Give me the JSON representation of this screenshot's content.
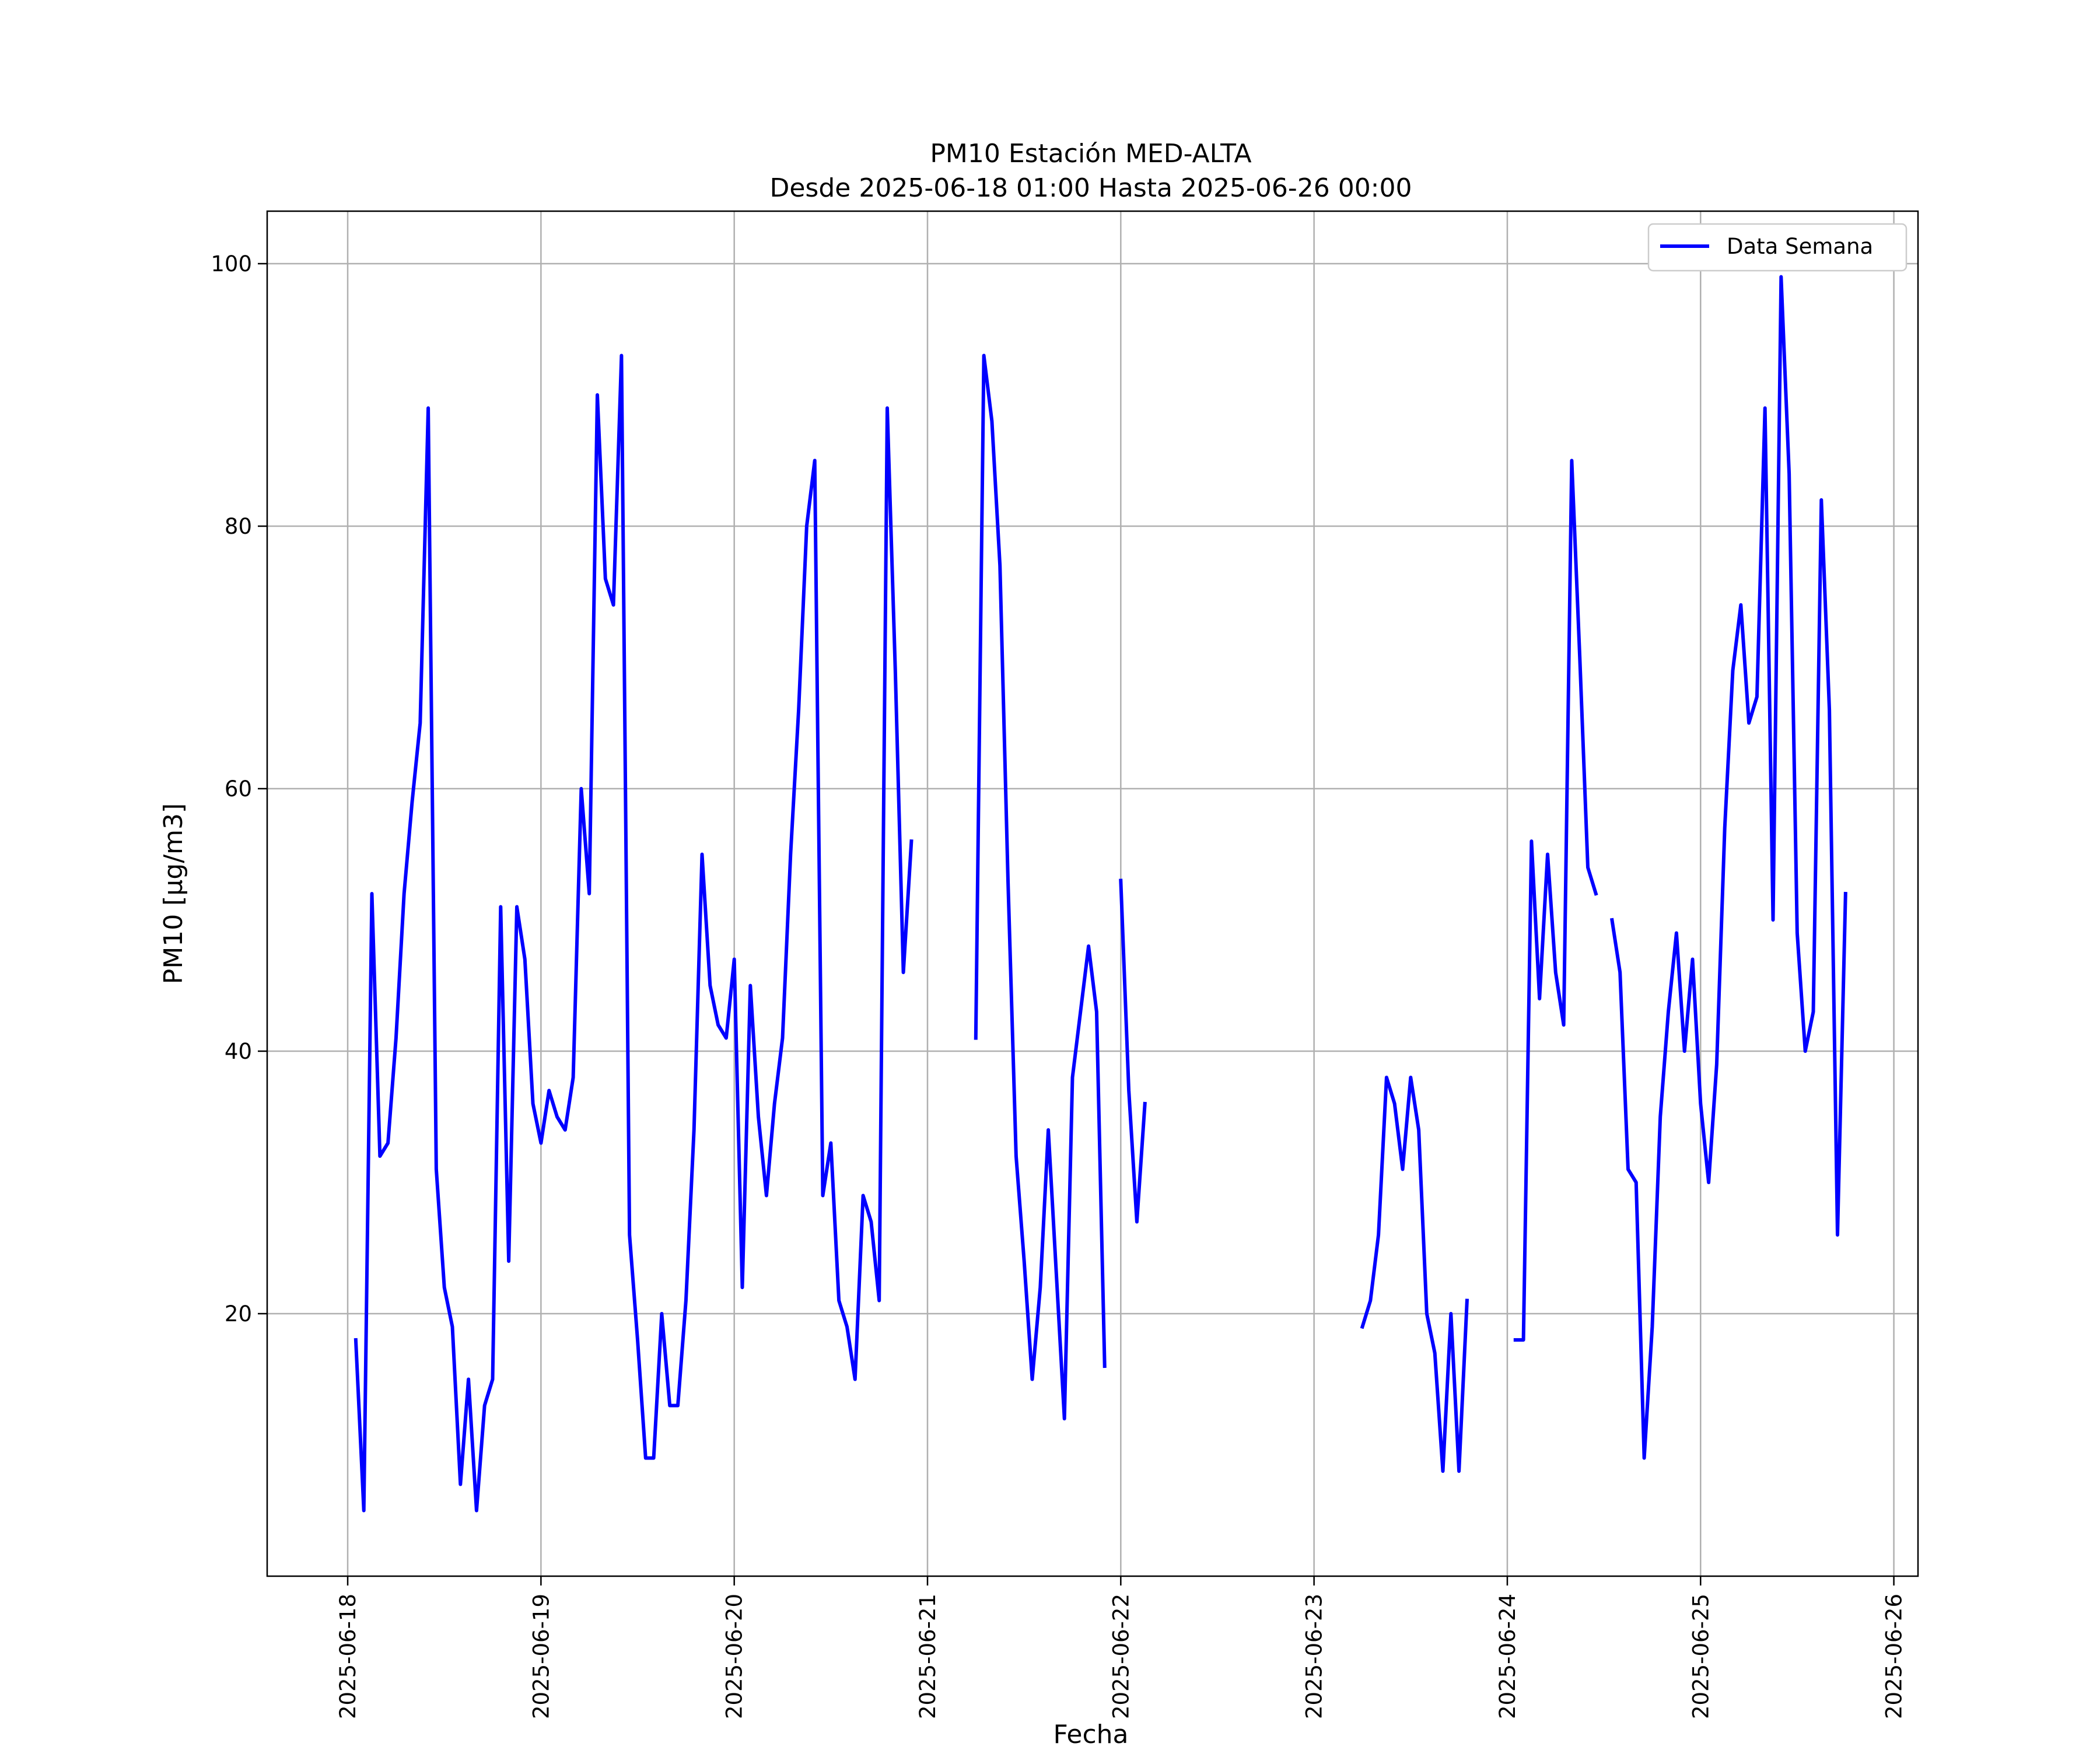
{
  "chart_data": {
    "type": "line",
    "title_line1": "PM10 Estación MED-ALTA",
    "title_line2": "Desde 2025-06-18 01:00 Hasta 2025-06-26 00:00",
    "xlabel": "Fecha",
    "ylabel": "PM10 [μg/m3]",
    "ylim": [
      0,
      104
    ],
    "xlim": [
      "2025-06-17 14:00",
      "2025-06-26 03:00"
    ],
    "x_ticks": [
      "2025-06-18",
      "2025-06-19",
      "2025-06-20",
      "2025-06-21",
      "2025-06-22",
      "2025-06-23",
      "2025-06-24",
      "2025-06-25",
      "2025-06-26"
    ],
    "y_ticks": [
      20,
      40,
      60,
      80,
      100
    ],
    "grid": true,
    "legend": {
      "position": "top-right"
    },
    "colors": {
      "series": "#0000ff",
      "grid": "#b0b0b0"
    },
    "series": [
      {
        "name": "Data Semana",
        "segments": [
          [
            [
              "2025-06-18 01:00",
              18
            ],
            [
              "2025-06-18 02:00",
              5
            ],
            [
              "2025-06-18 03:00",
              52
            ],
            [
              "2025-06-18 04:00",
              32
            ],
            [
              "2025-06-18 05:00",
              33
            ],
            [
              "2025-06-18 06:00",
              41
            ],
            [
              "2025-06-18 07:00",
              52
            ],
            [
              "2025-06-18 08:00",
              59
            ],
            [
              "2025-06-18 09:00",
              65
            ],
            [
              "2025-06-18 10:00",
              89
            ],
            [
              "2025-06-18 11:00",
              31
            ],
            [
              "2025-06-18 12:00",
              22
            ],
            [
              "2025-06-18 13:00",
              19
            ],
            [
              "2025-06-18 14:00",
              7
            ],
            [
              "2025-06-18 15:00",
              15
            ],
            [
              "2025-06-18 16:00",
              5
            ],
            [
              "2025-06-18 17:00",
              13
            ],
            [
              "2025-06-18 18:00",
              15
            ],
            [
              "2025-06-18 19:00",
              51
            ],
            [
              "2025-06-18 20:00",
              24
            ],
            [
              "2025-06-18 21:00",
              51
            ],
            [
              "2025-06-18 22:00",
              47
            ],
            [
              "2025-06-18 23:00",
              36
            ],
            [
              "2025-06-19 00:00",
              33
            ],
            [
              "2025-06-19 01:00",
              37
            ],
            [
              "2025-06-19 02:00",
              35
            ],
            [
              "2025-06-19 03:00",
              34
            ],
            [
              "2025-06-19 04:00",
              38
            ],
            [
              "2025-06-19 05:00",
              60
            ],
            [
              "2025-06-19 06:00",
              52
            ],
            [
              "2025-06-19 07:00",
              90
            ],
            [
              "2025-06-19 08:00",
              76
            ],
            [
              "2025-06-19 09:00",
              74
            ],
            [
              "2025-06-19 10:00",
              93
            ],
            [
              "2025-06-19 11:00",
              26
            ],
            [
              "2025-06-19 12:00",
              18
            ],
            [
              "2025-06-19 13:00",
              9
            ],
            [
              "2025-06-19 14:00",
              9
            ],
            [
              "2025-06-19 15:00",
              20
            ],
            [
              "2025-06-19 16:00",
              13
            ],
            [
              "2025-06-19 17:00",
              13
            ],
            [
              "2025-06-19 18:00",
              21
            ],
            [
              "2025-06-19 19:00",
              34
            ],
            [
              "2025-06-19 20:00",
              55
            ],
            [
              "2025-06-19 21:00",
              45
            ],
            [
              "2025-06-19 22:00",
              42
            ],
            [
              "2025-06-19 23:00",
              41
            ],
            [
              "2025-06-20 00:00",
              47
            ],
            [
              "2025-06-20 01:00",
              22
            ],
            [
              "2025-06-20 02:00",
              45
            ],
            [
              "2025-06-20 03:00",
              35
            ],
            [
              "2025-06-20 04:00",
              29
            ],
            [
              "2025-06-20 05:00",
              36
            ],
            [
              "2025-06-20 06:00",
              41
            ],
            [
              "2025-06-20 07:00",
              55
            ],
            [
              "2025-06-20 08:00",
              66
            ],
            [
              "2025-06-20 09:00",
              80
            ],
            [
              "2025-06-20 10:00",
              85
            ],
            [
              "2025-06-20 11:00",
              29
            ],
            [
              "2025-06-20 12:00",
              33
            ],
            [
              "2025-06-20 13:00",
              21
            ],
            [
              "2025-06-20 14:00",
              19
            ],
            [
              "2025-06-20 15:00",
              15
            ],
            [
              "2025-06-20 16:00",
              29
            ],
            [
              "2025-06-20 17:00",
              27
            ],
            [
              "2025-06-20 18:00",
              21
            ],
            [
              "2025-06-20 19:00",
              89
            ],
            [
              "2025-06-20 20:00",
              69
            ],
            [
              "2025-06-20 21:00",
              46
            ],
            [
              "2025-06-20 22:00",
              56
            ]
          ],
          [
            [
              "2025-06-21 06:00",
              41
            ],
            [
              "2025-06-21 07:00",
              93
            ],
            [
              "2025-06-21 08:00",
              88
            ],
            [
              "2025-06-21 09:00",
              77
            ],
            [
              "2025-06-21 10:00",
              53
            ],
            [
              "2025-06-21 11:00",
              32
            ],
            [
              "2025-06-21 12:00",
              24
            ],
            [
              "2025-06-21 13:00",
              15
            ],
            [
              "2025-06-21 14:00",
              22
            ],
            [
              "2025-06-21 15:00",
              34
            ],
            [
              "2025-06-21 16:00",
              23
            ],
            [
              "2025-06-21 17:00",
              12
            ],
            [
              "2025-06-21 18:00",
              38
            ],
            [
              "2025-06-21 19:00",
              43
            ],
            [
              "2025-06-21 20:00",
              48
            ],
            [
              "2025-06-21 21:00",
              43
            ],
            [
              "2025-06-21 22:00",
              16
            ]
          ],
          [
            [
              "2025-06-22 00:00",
              53
            ],
            [
              "2025-06-22 01:00",
              37
            ],
            [
              "2025-06-22 02:00",
              27
            ],
            [
              "2025-06-22 03:00",
              36
            ]
          ],
          [
            [
              "2025-06-23 06:00",
              19
            ],
            [
              "2025-06-23 07:00",
              21
            ],
            [
              "2025-06-23 08:00",
              26
            ],
            [
              "2025-06-23 09:00",
              38
            ],
            [
              "2025-06-23 10:00",
              36
            ],
            [
              "2025-06-23 11:00",
              31
            ],
            [
              "2025-06-23 12:00",
              38
            ],
            [
              "2025-06-23 13:00",
              34
            ],
            [
              "2025-06-23 14:00",
              20
            ],
            [
              "2025-06-23 15:00",
              17
            ],
            [
              "2025-06-23 16:00",
              8
            ],
            [
              "2025-06-23 17:00",
              20
            ],
            [
              "2025-06-23 18:00",
              8
            ],
            [
              "2025-06-23 19:00",
              21
            ]
          ],
          [
            [
              "2025-06-24 01:00",
              18
            ],
            [
              "2025-06-24 02:00",
              18
            ],
            [
              "2025-06-24 03:00",
              56
            ],
            [
              "2025-06-24 04:00",
              44
            ],
            [
              "2025-06-24 05:00",
              55
            ],
            [
              "2025-06-24 06:00",
              46
            ],
            [
              "2025-06-24 07:00",
              42
            ],
            [
              "2025-06-24 08:00",
              85
            ],
            [
              "2025-06-24 09:00",
              70
            ],
            [
              "2025-06-24 10:00",
              54
            ],
            [
              "2025-06-24 11:00",
              52
            ]
          ],
          [
            [
              "2025-06-24 13:00",
              50
            ],
            [
              "2025-06-24 14:00",
              46
            ],
            [
              "2025-06-24 15:00",
              31
            ],
            [
              "2025-06-24 16:00",
              30
            ],
            [
              "2025-06-24 17:00",
              9
            ],
            [
              "2025-06-24 18:00",
              19
            ],
            [
              "2025-06-24 19:00",
              35
            ],
            [
              "2025-06-24 20:00",
              43
            ],
            [
              "2025-06-24 21:00",
              49
            ],
            [
              "2025-06-24 22:00",
              40
            ],
            [
              "2025-06-24 23:00",
              47
            ],
            [
              "2025-06-25 00:00",
              36
            ],
            [
              "2025-06-25 01:00",
              30
            ],
            [
              "2025-06-25 02:00",
              39
            ],
            [
              "2025-06-25 03:00",
              57
            ],
            [
              "2025-06-25 04:00",
              69
            ],
            [
              "2025-06-25 05:00",
              74
            ],
            [
              "2025-06-25 06:00",
              65
            ],
            [
              "2025-06-25 07:00",
              67
            ],
            [
              "2025-06-25 08:00",
              89
            ],
            [
              "2025-06-25 09:00",
              50
            ],
            [
              "2025-06-25 10:00",
              99
            ],
            [
              "2025-06-25 11:00",
              84
            ],
            [
              "2025-06-25 12:00",
              49
            ],
            [
              "2025-06-25 13:00",
              40
            ],
            [
              "2025-06-25 14:00",
              43
            ],
            [
              "2025-06-25 15:00",
              82
            ],
            [
              "2025-06-25 16:00",
              66
            ],
            [
              "2025-06-25 17:00",
              26
            ],
            [
              "2025-06-25 18:00",
              52
            ]
          ]
        ]
      }
    ]
  }
}
